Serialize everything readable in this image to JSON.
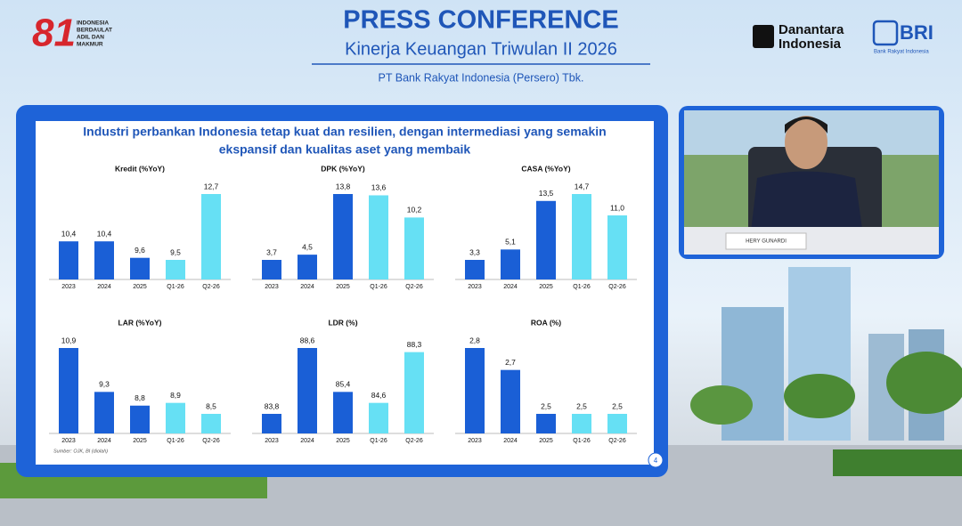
{
  "header": {
    "logo_text": [
      "INDONESIA",
      "BERDAULAT",
      "ADIL DAN",
      "MAKMUR"
    ],
    "title": "PRESS CONFERENCE",
    "subtitle": "Kinerja Keuangan Triwulan II 2026",
    "company": "PT Bank Rakyat Indonesia (Persero) Tbk.",
    "partner_logo": [
      "Danantara",
      "Indonesia"
    ],
    "bank_logo": "BRI",
    "bank_logo_caption": "Bank Rakyat Indonesia"
  },
  "slide": {
    "title": [
      "Industri perbankan Indonesia tetap kuat dan resilien, dengan intermediasi yang semakin",
      "ekspansif dan kualitas aset yang membaik"
    ],
    "source": "Sumber: OJK, BI (diolah)",
    "page": "4"
  },
  "video": {
    "nameplate": "HERY GUNARDI"
  },
  "chart_data": [
    {
      "type": "bar",
      "title": "Kredit (%YoY)",
      "categories": [
        "2023",
        "2024",
        "2025",
        "Q1-26",
        "Q2-26"
      ],
      "values": [
        10.4,
        10.4,
        9.6,
        9.5,
        12.7
      ],
      "value_labels": [
        "10,4",
        "10,4",
        "9,6",
        "9,5",
        "12,7"
      ],
      "colors": [
        "#1a5fd6",
        "#1a5fd6",
        "#1a5fd6",
        "#66e0f4",
        "#66e0f4"
      ]
    },
    {
      "type": "bar",
      "title": "DPK (%YoY)",
      "categories": [
        "2023",
        "2024",
        "2025",
        "Q1-26",
        "Q2-26"
      ],
      "values": [
        3.7,
        4.5,
        13.8,
        13.6,
        10.2
      ],
      "value_labels": [
        "3,7",
        "4,5",
        "13,8",
        "13,6",
        "10,2"
      ],
      "colors": [
        "#1a5fd6",
        "#1a5fd6",
        "#1a5fd6",
        "#66e0f4",
        "#66e0f4"
      ]
    },
    {
      "type": "bar",
      "title": "CASA (%YoY)",
      "categories": [
        "2023",
        "2024",
        "2025",
        "Q1-26",
        "Q2-26"
      ],
      "values": [
        3.3,
        5.1,
        13.5,
        14.7,
        11.0
      ],
      "value_labels": [
        "3,3",
        "5,1",
        "13,5",
        "14,7",
        "11,0"
      ],
      "colors": [
        "#1a5fd6",
        "#1a5fd6",
        "#1a5fd6",
        "#66e0f4",
        "#66e0f4"
      ]
    },
    {
      "type": "bar",
      "title": "LAR (%YoY)",
      "categories": [
        "2023",
        "2024",
        "2025",
        "Q1-26",
        "Q2-26"
      ],
      "values": [
        10.9,
        9.3,
        8.8,
        8.9,
        8.5
      ],
      "value_labels": [
        "10,9",
        "9,3",
        "8,8",
        "8,9",
        "8,5"
      ],
      "colors": [
        "#1a5fd6",
        "#1a5fd6",
        "#1a5fd6",
        "#66e0f4",
        "#66e0f4"
      ]
    },
    {
      "type": "bar",
      "title": "LDR (%)",
      "categories": [
        "2023",
        "2024",
        "2025",
        "Q1-26",
        "Q2-26"
      ],
      "values": [
        83.8,
        88.6,
        85.4,
        84.6,
        88.3
      ],
      "value_labels": [
        "83,8",
        "88,6",
        "85,4",
        "84,6",
        "88,3"
      ],
      "colors": [
        "#1a5fd6",
        "#1a5fd6",
        "#1a5fd6",
        "#66e0f4",
        "#66e0f4"
      ]
    },
    {
      "type": "bar",
      "title": "ROA (%)",
      "categories": [
        "2023",
        "2024",
        "2025",
        "Q1-26",
        "Q2-26"
      ],
      "values": [
        2.8,
        2.7,
        2.5,
        2.5,
        2.5
      ],
      "value_labels": [
        "2,8",
        "2,7",
        "2,5",
        "2,5",
        "2,5"
      ],
      "colors": [
        "#1a5fd6",
        "#1a5fd6",
        "#1a5fd6",
        "#66e0f4",
        "#66e0f4"
      ]
    }
  ]
}
